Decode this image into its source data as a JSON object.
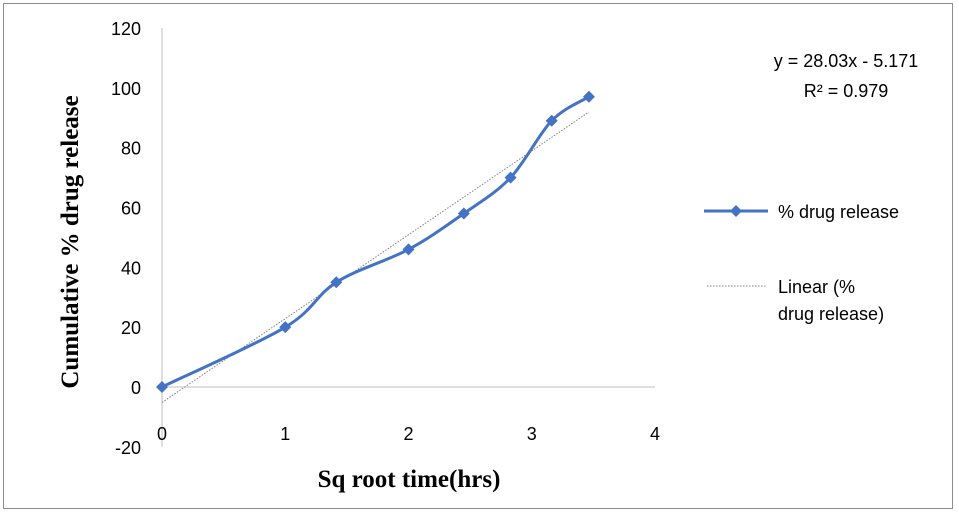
{
  "chart_data": {
    "type": "line",
    "xlabel": "Sq root time(hrs)",
    "ylabel": "Cumulative % drug release",
    "xlim": [
      0,
      4
    ],
    "ylim": [
      -20,
      120
    ],
    "x_ticks": [
      0,
      1,
      2,
      3,
      4
    ],
    "y_ticks": [
      -20,
      0,
      20,
      40,
      60,
      80,
      100,
      120
    ],
    "grid": false,
    "legend_position": "right",
    "series": [
      {
        "name": "% drug release",
        "color": "#4472C4",
        "marker": "diamond",
        "smooth": true,
        "x": [
          0,
          1,
          1.414,
          2,
          2.449,
          2.828,
          3.162,
          3.464
        ],
        "y": [
          0,
          20,
          35,
          46,
          58,
          70,
          89,
          97
        ]
      }
    ],
    "trendline": {
      "name": "Linear (% drug release)",
      "type": "linear",
      "slope": 28.03,
      "intercept": -5.171,
      "x_range": [
        0,
        3.464
      ],
      "color": "#808080"
    },
    "equation_label": "y = 28.03x - 5.171",
    "r2_label": "R² = 0.979",
    "legend": [
      "% drug release",
      "Linear (% drug release)"
    ]
  }
}
